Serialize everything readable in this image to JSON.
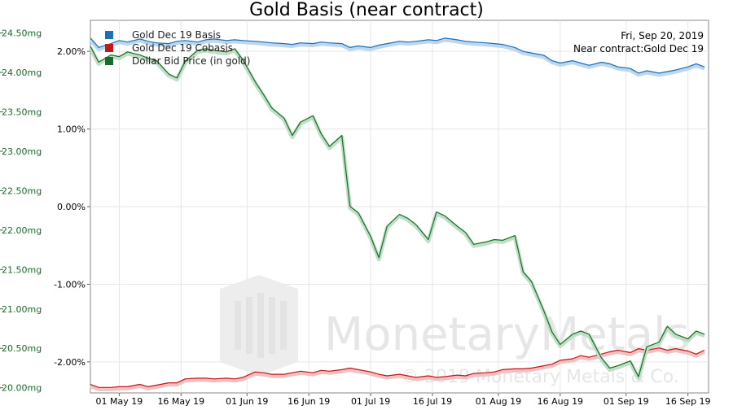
{
  "chart_data": {
    "type": "line",
    "title": "Gold Basis (near contract)",
    "info": {
      "date": "Fri, Sep 20, 2019",
      "contract": "Near contract:Gold Dec 19"
    },
    "legend": [
      "Gold Dec 19 Basis",
      "Gold Dec 19 Cobasis",
      "Dollar Bid Price (in gold)"
    ],
    "legend_placement": "top-left",
    "colors": {
      "basis": "#1f6fb4",
      "cobasis": "#c0191d",
      "price": "#1a6b2a"
    },
    "x_ticks": [
      "01 May 19",
      "16 May 19",
      "01 Jun 19",
      "16 Jun 19",
      "01 Jul 19",
      "16 Jul 19",
      "01 Aug 19",
      "16 Aug 19",
      "01 Sep 19",
      "16 Sep 19"
    ],
    "left_axis": {
      "unit": "%",
      "ticks": [
        "2.00%",
        "1.00%",
        "0.00%",
        "-1.00%",
        "-2.00%"
      ],
      "ylim": [
        -2.4,
        2.4
      ]
    },
    "right_axis": {
      "unit": "mg",
      "ticks": [
        "24.50mg",
        "24.00mg",
        "23.50mg",
        "23.00mg",
        "22.50mg",
        "22.00mg",
        "21.50mg",
        "21.00mg",
        "20.50mg",
        "20.00mg"
      ],
      "ylim": [
        19.935,
        24.66
      ]
    },
    "x_range": [
      "2019-04-24",
      "2019-09-21"
    ],
    "grid": true,
    "series": [
      {
        "name": "Gold Dec 19 Basis",
        "axis": "left",
        "points": [
          [
            "2019-04-24",
            2.17
          ],
          [
            "2019-04-26",
            2.05
          ],
          [
            "2019-04-29",
            2.1
          ],
          [
            "2019-05-01",
            2.14
          ],
          [
            "2019-05-03",
            2.12
          ],
          [
            "2019-05-06",
            2.16
          ],
          [
            "2019-05-08",
            2.13
          ],
          [
            "2019-05-10",
            2.11
          ],
          [
            "2019-05-13",
            2.1
          ],
          [
            "2019-05-15",
            2.13
          ],
          [
            "2019-05-17",
            2.14
          ],
          [
            "2019-05-20",
            2.12
          ],
          [
            "2019-05-22",
            2.15
          ],
          [
            "2019-05-24",
            2.16
          ],
          [
            "2019-05-27",
            2.14
          ],
          [
            "2019-05-29",
            2.15
          ],
          [
            "2019-05-31",
            2.14
          ],
          [
            "2019-06-03",
            2.13
          ],
          [
            "2019-06-05",
            2.12
          ],
          [
            "2019-06-07",
            2.11
          ],
          [
            "2019-06-10",
            2.1
          ],
          [
            "2019-06-12",
            2.09
          ],
          [
            "2019-06-14",
            2.11
          ],
          [
            "2019-06-17",
            2.1
          ],
          [
            "2019-06-19",
            2.12
          ],
          [
            "2019-06-21",
            2.11
          ],
          [
            "2019-06-24",
            2.1
          ],
          [
            "2019-06-26",
            2.05
          ],
          [
            "2019-06-28",
            2.07
          ],
          [
            "2019-07-01",
            2.05
          ],
          [
            "2019-07-03",
            2.08
          ],
          [
            "2019-07-05",
            2.1
          ],
          [
            "2019-07-08",
            2.13
          ],
          [
            "2019-07-10",
            2.12
          ],
          [
            "2019-07-12",
            2.13
          ],
          [
            "2019-07-15",
            2.15
          ],
          [
            "2019-07-17",
            2.14
          ],
          [
            "2019-07-19",
            2.17
          ],
          [
            "2019-07-22",
            2.15
          ],
          [
            "2019-07-24",
            2.13
          ],
          [
            "2019-07-26",
            2.12
          ],
          [
            "2019-07-29",
            2.11
          ],
          [
            "2019-07-31",
            2.1
          ],
          [
            "2019-08-02",
            2.09
          ],
          [
            "2019-08-05",
            2.05
          ],
          [
            "2019-08-07",
            2.0
          ],
          [
            "2019-08-09",
            1.98
          ],
          [
            "2019-08-12",
            1.95
          ],
          [
            "2019-08-14",
            1.88
          ],
          [
            "2019-08-16",
            1.85
          ],
          [
            "2019-08-19",
            1.88
          ],
          [
            "2019-08-21",
            1.85
          ],
          [
            "2019-08-23",
            1.82
          ],
          [
            "2019-08-26",
            1.86
          ],
          [
            "2019-08-28",
            1.84
          ],
          [
            "2019-08-30",
            1.8
          ],
          [
            "2019-09-02",
            1.78
          ],
          [
            "2019-09-04",
            1.72
          ],
          [
            "2019-09-06",
            1.75
          ],
          [
            "2019-09-09",
            1.72
          ],
          [
            "2019-09-11",
            1.74
          ],
          [
            "2019-09-13",
            1.76
          ],
          [
            "2019-09-16",
            1.8
          ],
          [
            "2019-09-18",
            1.84
          ],
          [
            "2019-09-20",
            1.8
          ]
        ]
      },
      {
        "name": "Gold Dec 19 Cobasis",
        "axis": "left",
        "points": [
          [
            "2019-04-24",
            -2.29
          ],
          [
            "2019-04-26",
            -2.33
          ],
          [
            "2019-04-29",
            -2.33
          ],
          [
            "2019-05-01",
            -2.32
          ],
          [
            "2019-05-03",
            -2.32
          ],
          [
            "2019-05-06",
            -2.29
          ],
          [
            "2019-05-08",
            -2.32
          ],
          [
            "2019-05-10",
            -2.3
          ],
          [
            "2019-05-13",
            -2.27
          ],
          [
            "2019-05-15",
            -2.27
          ],
          [
            "2019-05-17",
            -2.22
          ],
          [
            "2019-05-20",
            -2.21
          ],
          [
            "2019-05-22",
            -2.21
          ],
          [
            "2019-05-24",
            -2.22
          ],
          [
            "2019-05-27",
            -2.21
          ],
          [
            "2019-05-29",
            -2.22
          ],
          [
            "2019-05-31",
            -2.2
          ],
          [
            "2019-06-03",
            -2.13
          ],
          [
            "2019-06-05",
            -2.14
          ],
          [
            "2019-06-07",
            -2.16
          ],
          [
            "2019-06-10",
            -2.16
          ],
          [
            "2019-06-12",
            -2.14
          ],
          [
            "2019-06-14",
            -2.12
          ],
          [
            "2019-06-17",
            -2.14
          ],
          [
            "2019-06-19",
            -2.11
          ],
          [
            "2019-06-21",
            -2.12
          ],
          [
            "2019-06-24",
            -2.1
          ],
          [
            "2019-06-26",
            -2.08
          ],
          [
            "2019-06-28",
            -2.1
          ],
          [
            "2019-07-01",
            -2.13
          ],
          [
            "2019-07-03",
            -2.16
          ],
          [
            "2019-07-05",
            -2.18
          ],
          [
            "2019-07-08",
            -2.16
          ],
          [
            "2019-07-10",
            -2.18
          ],
          [
            "2019-07-12",
            -2.2
          ],
          [
            "2019-07-15",
            -2.18
          ],
          [
            "2019-07-17",
            -2.2
          ],
          [
            "2019-07-19",
            -2.19
          ],
          [
            "2019-07-22",
            -2.17
          ],
          [
            "2019-07-24",
            -2.18
          ],
          [
            "2019-07-26",
            -2.15
          ],
          [
            "2019-07-29",
            -2.14
          ],
          [
            "2019-07-31",
            -2.13
          ],
          [
            "2019-08-02",
            -2.1
          ],
          [
            "2019-08-05",
            -2.09
          ],
          [
            "2019-08-07",
            -2.09
          ],
          [
            "2019-08-09",
            -2.08
          ],
          [
            "2019-08-12",
            -2.05
          ],
          [
            "2019-08-14",
            -2.03
          ],
          [
            "2019-08-16",
            -1.98
          ],
          [
            "2019-08-19",
            -1.96
          ],
          [
            "2019-08-21",
            -1.92
          ],
          [
            "2019-08-23",
            -1.94
          ],
          [
            "2019-08-26",
            -1.9
          ],
          [
            "2019-08-28",
            -1.87
          ],
          [
            "2019-08-30",
            -1.85
          ],
          [
            "2019-09-02",
            -1.88
          ],
          [
            "2019-09-04",
            -1.83
          ],
          [
            "2019-09-06",
            -1.85
          ],
          [
            "2019-09-09",
            -1.82
          ],
          [
            "2019-09-11",
            -1.85
          ],
          [
            "2019-09-13",
            -1.83
          ],
          [
            "2019-09-16",
            -1.86
          ],
          [
            "2019-09-18",
            -1.9
          ],
          [
            "2019-09-20",
            -1.85
          ]
        ]
      },
      {
        "name": "Dollar Bid Price (in gold)",
        "axis": "right",
        "points": [
          [
            "2019-04-24",
            24.33
          ],
          [
            "2019-04-26",
            24.13
          ],
          [
            "2019-04-29",
            24.22
          ],
          [
            "2019-05-01",
            24.2
          ],
          [
            "2019-05-03",
            24.26
          ],
          [
            "2019-05-06",
            24.22
          ],
          [
            "2019-05-08",
            24.18
          ],
          [
            "2019-05-10",
            24.15
          ],
          [
            "2019-05-13",
            23.98
          ],
          [
            "2019-05-15",
            23.93
          ],
          [
            "2019-05-17",
            24.14
          ],
          [
            "2019-05-20",
            24.28
          ],
          [
            "2019-05-22",
            24.3
          ],
          [
            "2019-05-24",
            24.28
          ],
          [
            "2019-05-27",
            24.26
          ],
          [
            "2019-05-29",
            24.3
          ],
          [
            "2019-05-31",
            24.16
          ],
          [
            "2019-06-03",
            23.88
          ],
          [
            "2019-06-05",
            23.72
          ],
          [
            "2019-06-07",
            23.55
          ],
          [
            "2019-06-10",
            23.42
          ],
          [
            "2019-06-12",
            23.2
          ],
          [
            "2019-06-14",
            23.37
          ],
          [
            "2019-06-17",
            23.45
          ],
          [
            "2019-06-19",
            23.22
          ],
          [
            "2019-06-21",
            23.06
          ],
          [
            "2019-06-24",
            23.2
          ],
          [
            "2019-06-26",
            22.3
          ],
          [
            "2019-06-28",
            22.22
          ],
          [
            "2019-07-01",
            21.92
          ],
          [
            "2019-07-03",
            21.65
          ],
          [
            "2019-07-05",
            22.05
          ],
          [
            "2019-07-08",
            22.2
          ],
          [
            "2019-07-10",
            22.15
          ],
          [
            "2019-07-12",
            22.07
          ],
          [
            "2019-07-15",
            21.88
          ],
          [
            "2019-07-17",
            22.23
          ],
          [
            "2019-07-19",
            22.18
          ],
          [
            "2019-07-22",
            22.05
          ],
          [
            "2019-07-24",
            21.97
          ],
          [
            "2019-07-26",
            21.82
          ],
          [
            "2019-07-29",
            21.85
          ],
          [
            "2019-07-31",
            21.88
          ],
          [
            "2019-08-02",
            21.87
          ],
          [
            "2019-08-05",
            21.93
          ],
          [
            "2019-08-07",
            21.47
          ],
          [
            "2019-08-09",
            21.35
          ],
          [
            "2019-08-12",
            20.98
          ],
          [
            "2019-08-14",
            20.71
          ],
          [
            "2019-08-16",
            20.55
          ],
          [
            "2019-08-19",
            20.68
          ],
          [
            "2019-08-21",
            20.72
          ],
          [
            "2019-08-23",
            20.68
          ],
          [
            "2019-08-26",
            20.38
          ],
          [
            "2019-08-28",
            20.25
          ],
          [
            "2019-08-30",
            20.28
          ],
          [
            "2019-09-02",
            20.34
          ],
          [
            "2019-09-04",
            20.14
          ],
          [
            "2019-09-06",
            20.52
          ],
          [
            "2019-09-09",
            20.58
          ],
          [
            "2019-09-11",
            20.78
          ],
          [
            "2019-09-13",
            20.68
          ],
          [
            "2019-09-16",
            20.62
          ],
          [
            "2019-09-18",
            20.72
          ],
          [
            "2019-09-20",
            20.68
          ]
        ]
      }
    ]
  },
  "watermark": {
    "brand": "MonetaryMetals",
    "copyright": "© 2019 Monetary Metals & Co."
  }
}
